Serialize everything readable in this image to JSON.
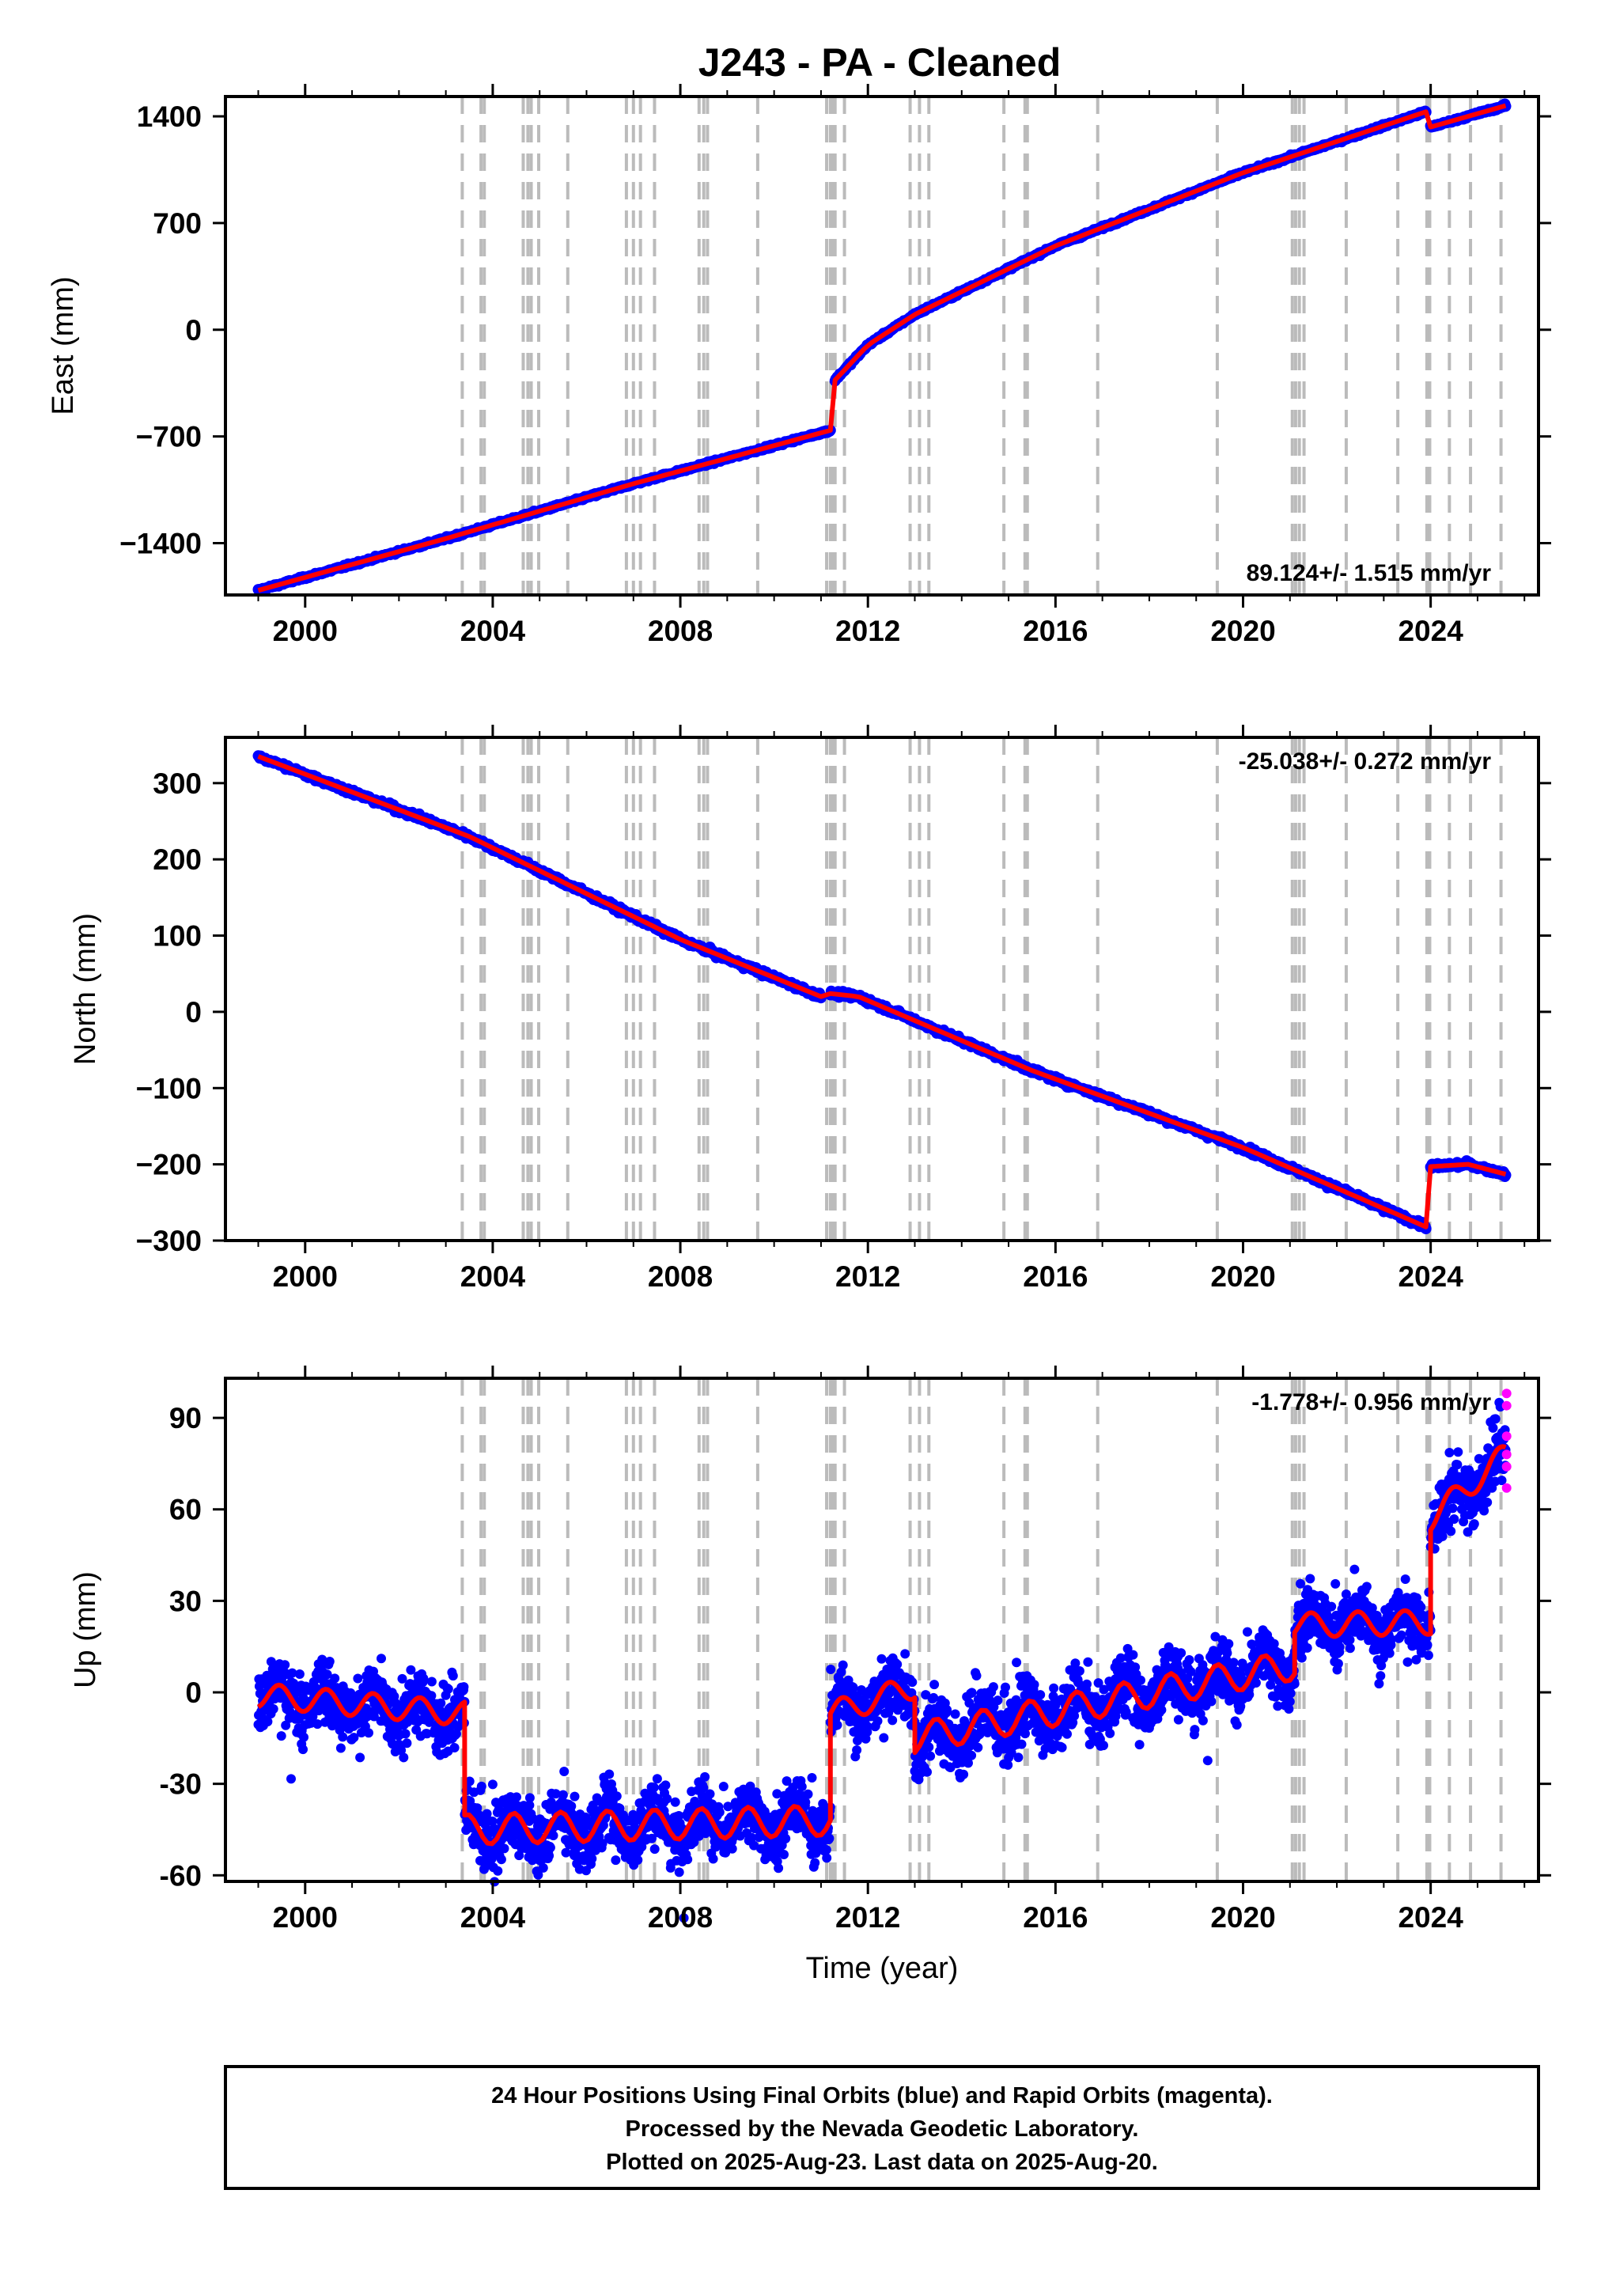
{
  "title": "J243  - PA - Cleaned",
  "footer": {
    "lines": [
      "24 Hour Positions Using Final Orbits (blue) and Rapid Orbits (magenta).",
      "Processed by the Nevada Geodetic Laboratory.",
      "Plotted on 2025-Aug-23. Last data on 2025-Aug-20."
    ]
  },
  "colors": {
    "final_orbits": "#0000ff",
    "rapid_orbits": "#ff00ff",
    "model_fit": "#ff0000",
    "event_lines": "#bbbbbb"
  },
  "chart_data": [
    {
      "type": "scatter",
      "name": "east",
      "ylabel": "East (mm)",
      "xlabel": "",
      "xlim": [
        1998.3,
        2026.3
      ],
      "ylim": [
        -1740,
        1530
      ],
      "x_ticks": [
        "2000",
        "2004",
        "2008",
        "2012",
        "2016",
        "2020",
        "2024"
      ],
      "y_ticks": [
        "1400",
        "700",
        "0",
        "−700",
        "−1400"
      ],
      "y_tick_values": [
        1400,
        700,
        0,
        -700,
        -1400
      ],
      "rate_label": "89.124+/- 1.515 mm/yr",
      "rate_position": "bottom-right",
      "series": [
        {
          "segment": 1,
          "x": [
            1999.0,
            2003.0,
            2007.0,
            2011.2
          ],
          "y": [
            -1710,
            -1370,
            -1010,
            -660
          ]
        },
        {
          "segment": 2,
          "x": [
            2011.3,
            2012.0,
            2013.0,
            2016.0,
            2020.0,
            2023.9
          ],
          "y": [
            -330,
            -100,
            100,
            550,
            1030,
            1430
          ]
        },
        {
          "segment": 3,
          "x": [
            2024.0,
            2025.6
          ],
          "y": [
            1330,
            1470
          ]
        }
      ]
    },
    {
      "type": "scatter",
      "name": "north",
      "ylabel": "North (mm)",
      "xlabel": "",
      "xlim": [
        1998.3,
        2026.3
      ],
      "ylim": [
        -300,
        360
      ],
      "x_ticks": [
        "2000",
        "2004",
        "2008",
        "2012",
        "2016",
        "2020",
        "2024"
      ],
      "y_ticks": [
        "300",
        "200",
        "100",
        "0",
        "−100",
        "−200",
        "−300"
      ],
      "y_tick_values": [
        300,
        200,
        100,
        0,
        -100,
        -200,
        -300
      ],
      "rate_label": "-25.038+/- 0.272 mm/yr",
      "rate_position": "top-right",
      "series": [
        {
          "segment": 1,
          "x": [
            1999.0,
            2003.5,
            2005.0,
            2008.0,
            2011.0
          ],
          "y": [
            335,
            230,
            185,
            95,
            20
          ]
        },
        {
          "segment": 2,
          "x": [
            2011.2,
            2011.8,
            2015.5,
            2020.0,
            2023.9
          ],
          "y": [
            24,
            20,
            -77,
            -178,
            -282
          ]
        },
        {
          "segment": 3,
          "x": [
            2024.0,
            2024.8,
            2025.6
          ],
          "y": [
            -203,
            -200,
            -213
          ]
        }
      ]
    },
    {
      "type": "scatter",
      "name": "up",
      "ylabel": "Up (mm)",
      "xlabel": "Time (year)",
      "xlim": [
        1998.3,
        2026.3
      ],
      "ylim": [
        -62,
        103
      ],
      "x_ticks": [
        "2000",
        "2004",
        "2008",
        "2012",
        "2016",
        "2020",
        "2024"
      ],
      "y_ticks": [
        "90",
        "60",
        "30",
        "0",
        "-30",
        "-60"
      ],
      "y_tick_values": [
        90,
        60,
        30,
        0,
        -30,
        -60
      ],
      "rate_label": "-1.778+/- 0.956 mm/yr",
      "rate_position": "top-right",
      "series": [
        {
          "segment": 1,
          "x": [
            1999.0,
            2003.4
          ],
          "y": [
            -1,
            -7
          ],
          "amplitude": 4
        },
        {
          "segment": 2,
          "x": [
            2003.4,
            2011.2
          ],
          "y": [
            -45,
            -42
          ],
          "amplitude": 5
        },
        {
          "segment": 3,
          "x": [
            2011.2,
            2013.0
          ],
          "y": [
            -7,
            2
          ],
          "amplitude": 4
        },
        {
          "segment": 4,
          "x": [
            2013.0,
            2021.1
          ],
          "y": [
            -15,
            9
          ],
          "amplitude": 5
        },
        {
          "segment": 5,
          "x": [
            2021.1,
            2024.0
          ],
          "y": [
            22,
            23
          ],
          "amplitude": 4
        },
        {
          "segment": 6,
          "x": [
            2024.0,
            2025.6
          ],
          "y": [
            57,
            78
          ],
          "amplitude": 4
        }
      ],
      "rapid_orbit_points": {
        "x": [
          2025.62,
          2025.62,
          2025.62,
          2025.62,
          2025.62,
          2025.62
        ],
        "y": [
          98,
          94,
          84,
          78,
          74,
          67
        ]
      }
    }
  ],
  "event_lines": [
    2003.35,
    2003.75,
    2003.82,
    2004.65,
    2004.75,
    2004.82,
    2004.98,
    2005.6,
    2006.85,
    2007.0,
    2007.15,
    2007.45,
    2008.4,
    2008.5,
    2008.58,
    2009.65,
    2011.12,
    2011.2,
    2011.25,
    2011.3,
    2011.5,
    2012.9,
    2013.1,
    2013.3,
    2014.9,
    2015.35,
    2015.4,
    2016.9,
    2019.45,
    2021.05,
    2021.12,
    2021.2,
    2021.3,
    2022.2,
    2023.3,
    2023.92,
    2023.98,
    2024.4,
    2024.85,
    2025.5
  ]
}
